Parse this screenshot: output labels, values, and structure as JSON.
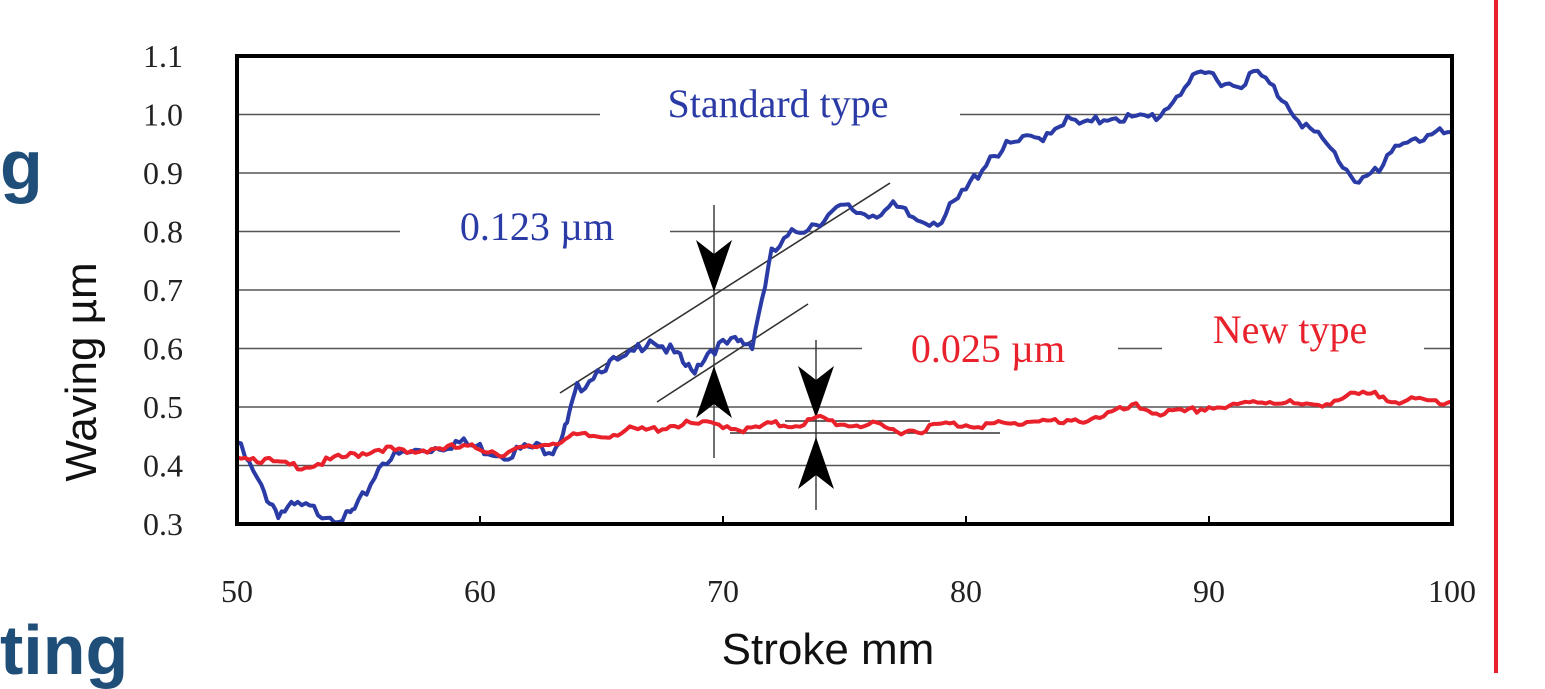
{
  "colors": {
    "standard": "#2a3ba6",
    "new": "#e8212b",
    "side_text": "#1f4e79",
    "rule": "#e8212b"
  },
  "side_fragments": {
    "g": "g",
    "ting": "ting"
  },
  "chart_data": {
    "type": "line",
    "xlabel": "Stroke mm",
    "ylabel": "Waving µm",
    "xlim": [
      50,
      100
    ],
    "ylim": [
      0.3,
      1.1
    ],
    "x_ticks": [
      "50",
      "60",
      "70",
      "80",
      "90",
      "100"
    ],
    "y_ticks": [
      "1.1",
      "1.0",
      "0.9",
      "0.8",
      "0.7",
      "0.6",
      "0.5",
      "0.4",
      "0.3"
    ],
    "grid": "horizontal",
    "series": [
      {
        "name": "Standard type",
        "x": [
          50,
          51,
          51.7,
          52.5,
          53.5,
          54.5,
          55,
          56,
          57,
          58,
          59,
          60,
          61,
          62,
          63,
          63.5,
          64,
          65,
          66,
          67,
          68,
          68.7,
          69.5,
          70.5,
          71.2,
          72,
          73,
          74,
          75,
          76,
          77,
          78,
          79,
          80,
          81,
          82,
          83,
          84,
          85,
          86,
          87,
          88,
          89,
          90,
          91,
          92,
          93,
          94,
          95,
          96,
          97,
          98,
          99,
          100
        ],
        "values": [
          0.44,
          0.36,
          0.32,
          0.33,
          0.32,
          0.31,
          0.33,
          0.41,
          0.42,
          0.43,
          0.44,
          0.43,
          0.42,
          0.43,
          0.43,
          0.46,
          0.53,
          0.57,
          0.58,
          0.62,
          0.59,
          0.56,
          0.6,
          0.61,
          0.61,
          0.76,
          0.8,
          0.82,
          0.84,
          0.83,
          0.84,
          0.82,
          0.82,
          0.87,
          0.93,
          0.95,
          0.96,
          0.99,
          0.98,
          1.0,
          0.99,
          1.0,
          1.05,
          1.07,
          1.05,
          1.07,
          1.03,
          0.98,
          0.94,
          0.89,
          0.9,
          0.96,
          0.96,
          0.97
        ]
      },
      {
        "name": "New type",
        "x": [
          50,
          51,
          52,
          53,
          54,
          55,
          56,
          57,
          58,
          59,
          60,
          61,
          62,
          63,
          64,
          65,
          66,
          67,
          68,
          69,
          70,
          71,
          72,
          73,
          74,
          75,
          76,
          77,
          78,
          79,
          80,
          81,
          82,
          83,
          84,
          85,
          86,
          87,
          88,
          89,
          90,
          91,
          92,
          93,
          94,
          95,
          96,
          97,
          98,
          99,
          100
        ],
        "values": [
          0.42,
          0.41,
          0.4,
          0.4,
          0.41,
          0.42,
          0.43,
          0.42,
          0.43,
          0.43,
          0.43,
          0.42,
          0.43,
          0.44,
          0.45,
          0.45,
          0.46,
          0.46,
          0.47,
          0.47,
          0.47,
          0.46,
          0.47,
          0.47,
          0.48,
          0.47,
          0.47,
          0.46,
          0.46,
          0.47,
          0.47,
          0.47,
          0.47,
          0.48,
          0.47,
          0.48,
          0.49,
          0.5,
          0.49,
          0.49,
          0.5,
          0.5,
          0.51,
          0.51,
          0.5,
          0.51,
          0.52,
          0.52,
          0.51,
          0.51,
          0.51
        ]
      }
    ],
    "annotations": {
      "standard_label": "Standard type",
      "new_label": "New type",
      "standard_range": "0.123 µm",
      "new_range": "0.025 µm"
    }
  }
}
